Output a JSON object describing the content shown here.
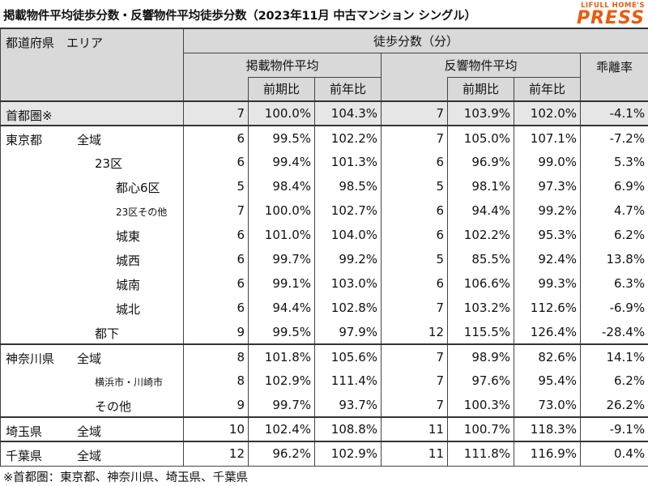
{
  "title": "掲載物件平均徒歩分数・反響物件平均徒歩分数（2023年11月 中古マンション シングル）",
  "logo": {
    "top": "LIFULL HOME'S",
    "main": "PRESS",
    "color": "#ea5a0c"
  },
  "headers": {
    "area": "都道府県　エリア",
    "group": "徒歩分数（分）",
    "listed": "掲載物件平均",
    "response": "反響物件平均",
    "gap": "乖離率",
    "prev_period": "前期比",
    "prev_year": "前年比"
  },
  "rows": [
    {
      "pref": "首都圏※",
      "sub": "",
      "level": 0,
      "lv": "7",
      "lp": "100.0%",
      "ly": "104.3%",
      "rv": "7",
      "rp": "103.9%",
      "ry": "102.0%",
      "gap": "-4.1%"
    },
    {
      "pref": "東京都",
      "sub": "全域",
      "level": 0,
      "lv": "6",
      "lp": "99.5%",
      "ly": "102.2%",
      "rv": "7",
      "rp": "105.0%",
      "ry": "107.1%",
      "gap": "-7.2%"
    },
    {
      "pref": "",
      "sub": "23区",
      "level": 1,
      "lv": "6",
      "lp": "99.4%",
      "ly": "101.3%",
      "rv": "6",
      "rp": "96.9%",
      "ry": "99.0%",
      "gap": "5.3%"
    },
    {
      "pref": "",
      "sub": "都心6区",
      "level": 2,
      "lv": "5",
      "lp": "98.4%",
      "ly": "98.5%",
      "rv": "5",
      "rp": "98.1%",
      "ry": "97.3%",
      "gap": "6.9%"
    },
    {
      "pref": "",
      "sub": "23区その他",
      "level": 2,
      "lv": "7",
      "lp": "100.0%",
      "ly": "102.7%",
      "rv": "6",
      "rp": "94.4%",
      "ry": "99.2%",
      "gap": "4.7%"
    },
    {
      "pref": "",
      "sub": "城東",
      "level": 2,
      "lv": "6",
      "lp": "101.0%",
      "ly": "104.0%",
      "rv": "6",
      "rp": "102.2%",
      "ry": "95.3%",
      "gap": "6.2%"
    },
    {
      "pref": "",
      "sub": "城西",
      "level": 2,
      "lv": "6",
      "lp": "99.7%",
      "ly": "99.2%",
      "rv": "5",
      "rp": "85.5%",
      "ry": "92.4%",
      "gap": "13.8%"
    },
    {
      "pref": "",
      "sub": "城南",
      "level": 2,
      "lv": "6",
      "lp": "99.1%",
      "ly": "103.0%",
      "rv": "6",
      "rp": "106.6%",
      "ry": "99.3%",
      "gap": "6.3%"
    },
    {
      "pref": "",
      "sub": "城北",
      "level": 2,
      "lv": "6",
      "lp": "94.4%",
      "ly": "102.8%",
      "rv": "7",
      "rp": "103.2%",
      "ry": "112.6%",
      "gap": "-6.9%"
    },
    {
      "pref": "",
      "sub": "都下",
      "level": 1,
      "lv": "9",
      "lp": "99.5%",
      "ly": "97.9%",
      "rv": "12",
      "rp": "115.5%",
      "ry": "126.4%",
      "gap": "-28.4%"
    },
    {
      "pref": "神奈川県",
      "sub": "全域",
      "level": 0,
      "lv": "8",
      "lp": "101.8%",
      "ly": "105.6%",
      "rv": "7",
      "rp": "98.9%",
      "ry": "82.6%",
      "gap": "14.1%"
    },
    {
      "pref": "",
      "sub": "横浜市・川崎市",
      "level": 1,
      "lv": "8",
      "lp": "102.9%",
      "ly": "111.4%",
      "rv": "7",
      "rp": "97.6%",
      "ry": "95.4%",
      "gap": "6.2%"
    },
    {
      "pref": "",
      "sub": "その他",
      "level": 1,
      "lv": "9",
      "lp": "99.7%",
      "ly": "93.7%",
      "rv": "7",
      "rp": "100.3%",
      "ry": "73.0%",
      "gap": "26.2%"
    },
    {
      "pref": "埼玉県",
      "sub": "全域",
      "level": 0,
      "lv": "10",
      "lp": "102.4%",
      "ly": "108.8%",
      "rv": "11",
      "rp": "100.7%",
      "ry": "118.3%",
      "gap": "-9.1%"
    },
    {
      "pref": "千葉県",
      "sub": "全域",
      "level": 0,
      "lv": "12",
      "lp": "96.2%",
      "ly": "102.9%",
      "rv": "11",
      "rp": "111.8%",
      "ry": "116.9%",
      "gap": "0.4%"
    }
  ],
  "footnote": "※首都圏：東京都、神奈川県、埼玉県、千葉県"
}
